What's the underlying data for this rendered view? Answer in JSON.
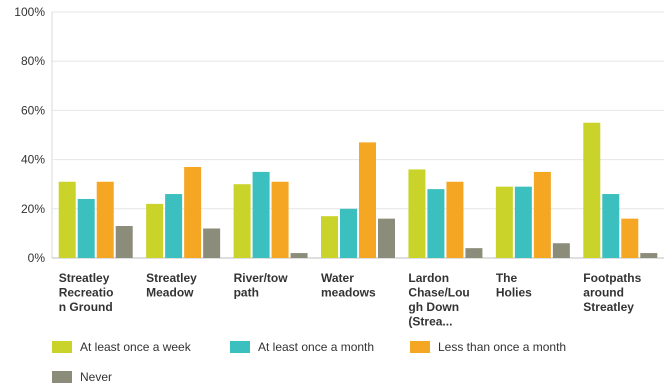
{
  "chart_data": {
    "type": "bar",
    "categories": [
      [
        "Streatley",
        "Recreatio",
        "n Ground"
      ],
      [
        "Streatley",
        "Meadow"
      ],
      [
        "River/tow",
        "path"
      ],
      [
        "Water",
        "meadows"
      ],
      [
        "Lardon",
        "Chase/Lou",
        "gh Down",
        "(Strea..."
      ],
      [
        "The",
        "Holies"
      ],
      [
        "Footpaths",
        "around",
        "Streatley"
      ]
    ],
    "series": [
      {
        "name": "At least once a week",
        "color": "#c9d32a",
        "values": [
          31,
          22,
          30,
          17,
          36,
          29,
          55
        ]
      },
      {
        "name": "At least once a month",
        "color": "#3bbfbf",
        "values": [
          24,
          26,
          35,
          20,
          28,
          29,
          26
        ]
      },
      {
        "name": "Less than once a month",
        "color": "#f5a623",
        "values": [
          31,
          37,
          31,
          47,
          31,
          35,
          16
        ]
      },
      {
        "name": "Never",
        "color": "#8c8c7a",
        "values": [
          13,
          12,
          2,
          16,
          4,
          6,
          2
        ]
      }
    ],
    "yticks": [
      "0%",
      "20%",
      "40%",
      "60%",
      "80%",
      "100%"
    ],
    "ylim": [
      0,
      100
    ],
    "grid": true,
    "legend_position": "bottom-left"
  }
}
